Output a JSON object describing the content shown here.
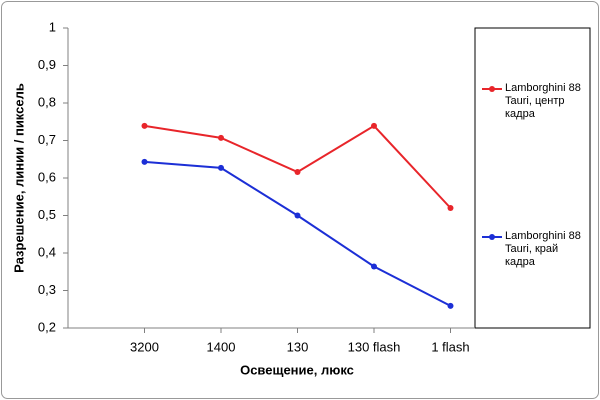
{
  "chart_data": {
    "type": "line",
    "y_label": "Разрешение, линии / пиксель",
    "x_label": "Освещение, люкс",
    "categories": [
      "3200",
      "1400",
      "130",
      "130 flash",
      "1 flash"
    ],
    "series": [
      {
        "name": "Lamborghini 88 Tauri, центр кадра",
        "color": "#e8252a",
        "values": [
          0.739,
          0.707,
          0.616,
          0.739,
          0.52
        ]
      },
      {
        "name": "Lamborghini 88 Tauri, край кадра",
        "color": "#1c2fd6",
        "values": [
          0.643,
          0.627,
          0.5,
          0.364,
          0.259
        ]
      }
    ],
    "ylim": [
      0.2,
      1
    ],
    "yticks": [
      {
        "value": 0.2,
        "label": "0,2"
      },
      {
        "value": 0.3,
        "label": "0,3"
      },
      {
        "value": 0.4,
        "label": "0,4"
      },
      {
        "value": 0.5,
        "label": "0,5"
      },
      {
        "value": 0.6,
        "label": "0,6"
      },
      {
        "value": 0.7,
        "label": "0,7"
      },
      {
        "value": 0.8,
        "label": "0,8"
      },
      {
        "value": 0.9,
        "label": "0,9"
      },
      1
    ],
    "grid": false
  }
}
